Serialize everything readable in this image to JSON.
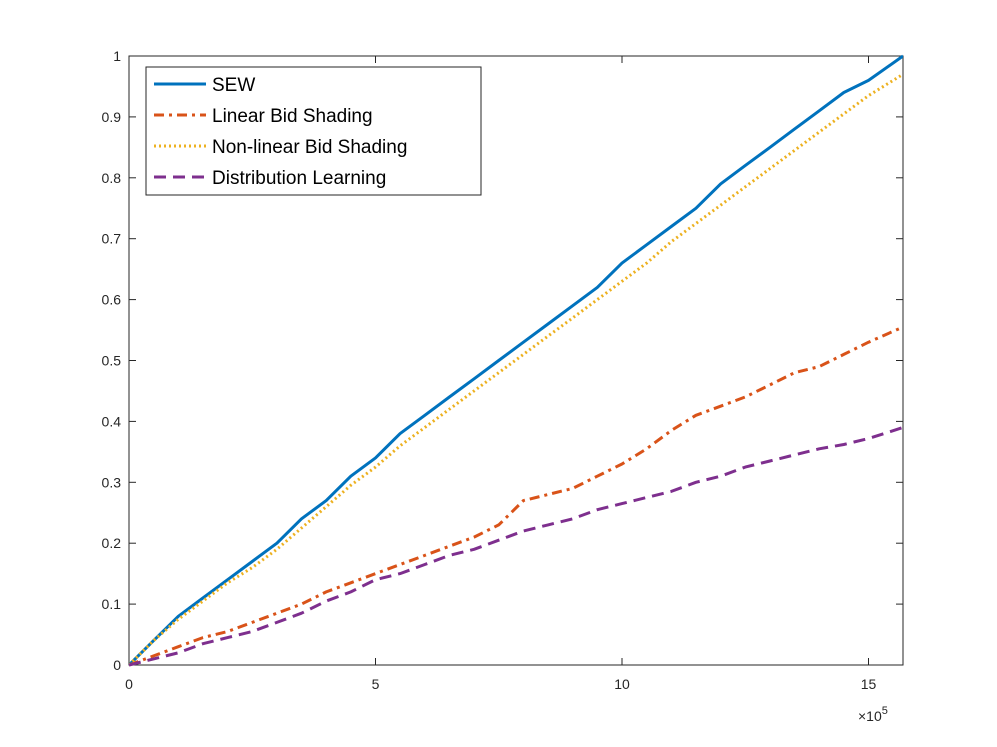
{
  "chart_data": {
    "type": "line",
    "title": "",
    "xlabel": "",
    "ylabel": "",
    "x_exponent_label": "×10",
    "x_exponent_power": "5",
    "xlim": [
      0,
      15.7
    ],
    "ylim": [
      0,
      1
    ],
    "xticks": [
      0,
      5,
      10,
      15
    ],
    "yticks": [
      0,
      0.1,
      0.2,
      0.3,
      0.4,
      0.5,
      0.6,
      0.7,
      0.8,
      0.9,
      1
    ],
    "x_tick_labels": [
      "0",
      "5",
      "10",
      "15"
    ],
    "y_tick_labels": [
      "0",
      "0.1",
      "0.2",
      "0.3",
      "0.4",
      "0.5",
      "0.6",
      "0.7",
      "0.8",
      "0.9",
      "1"
    ],
    "grid": false,
    "legend_position": "top-left",
    "series": [
      {
        "name": "SEW",
        "color": "#0072BD",
        "style": "solid",
        "x": [
          0,
          0.5,
          1,
          1.5,
          2,
          2.5,
          3,
          3.5,
          4,
          4.5,
          5,
          5.5,
          6,
          6.5,
          7,
          7.5,
          8,
          8.5,
          9,
          9.5,
          10,
          10.5,
          11,
          11.5,
          12,
          12.5,
          13,
          13.5,
          14,
          14.5,
          15,
          15.7
        ],
        "y": [
          0,
          0.04,
          0.08,
          0.11,
          0.14,
          0.17,
          0.2,
          0.24,
          0.27,
          0.31,
          0.34,
          0.38,
          0.41,
          0.44,
          0.47,
          0.5,
          0.53,
          0.56,
          0.59,
          0.62,
          0.66,
          0.69,
          0.72,
          0.75,
          0.79,
          0.82,
          0.85,
          0.88,
          0.91,
          0.94,
          0.96,
          1.0
        ]
      },
      {
        "name": "Linear Bid Shading",
        "color": "#D95319",
        "style": "dashdot",
        "x": [
          0,
          0.5,
          1,
          1.5,
          2,
          2.5,
          3,
          3.5,
          4,
          4.5,
          5,
          5.5,
          6,
          6.5,
          7,
          7.5,
          8,
          8.5,
          9,
          9.5,
          10,
          10.5,
          11,
          11.5,
          12,
          12.5,
          13,
          13.5,
          14,
          14.5,
          15,
          15.7
        ],
        "y": [
          0,
          0.015,
          0.03,
          0.045,
          0.055,
          0.07,
          0.085,
          0.1,
          0.12,
          0.135,
          0.15,
          0.165,
          0.18,
          0.195,
          0.21,
          0.23,
          0.27,
          0.28,
          0.29,
          0.31,
          0.33,
          0.355,
          0.385,
          0.41,
          0.425,
          0.44,
          0.46,
          0.48,
          0.49,
          0.51,
          0.53,
          0.555
        ]
      },
      {
        "name": "Non-linear Bid Shading",
        "color": "#EDB120",
        "style": "dotted",
        "x": [
          0,
          0.5,
          1,
          1.5,
          2,
          2.5,
          3,
          3.5,
          4,
          4.5,
          5,
          5.5,
          6,
          6.5,
          7,
          7.5,
          8,
          8.5,
          9,
          9.5,
          10,
          10.5,
          11,
          11.5,
          12,
          12.5,
          13,
          13.5,
          14,
          14.5,
          15,
          15.7
        ],
        "y": [
          0,
          0.04,
          0.075,
          0.105,
          0.135,
          0.16,
          0.19,
          0.225,
          0.26,
          0.295,
          0.325,
          0.36,
          0.39,
          0.42,
          0.45,
          0.48,
          0.51,
          0.54,
          0.57,
          0.6,
          0.63,
          0.66,
          0.695,
          0.725,
          0.755,
          0.785,
          0.815,
          0.845,
          0.875,
          0.905,
          0.935,
          0.97
        ]
      },
      {
        "name": "Distribution Learning",
        "color": "#7E2F8E",
        "style": "dashed",
        "x": [
          0,
          0.5,
          1,
          1.5,
          2,
          2.5,
          3,
          3.5,
          4,
          4.5,
          5,
          5.5,
          6,
          6.5,
          7,
          7.5,
          8,
          8.5,
          9,
          9.5,
          10,
          10.5,
          11,
          11.5,
          12,
          12.5,
          13,
          13.5,
          14,
          14.5,
          15,
          15.7
        ],
        "y": [
          0,
          0.01,
          0.02,
          0.035,
          0.045,
          0.055,
          0.07,
          0.085,
          0.105,
          0.12,
          0.14,
          0.15,
          0.165,
          0.18,
          0.19,
          0.205,
          0.22,
          0.23,
          0.24,
          0.255,
          0.265,
          0.275,
          0.285,
          0.3,
          0.31,
          0.325,
          0.335,
          0.345,
          0.355,
          0.362,
          0.372,
          0.39
        ]
      }
    ]
  }
}
